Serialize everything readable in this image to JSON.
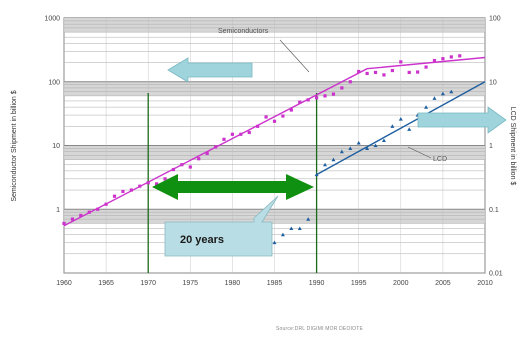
{
  "chart_data": {
    "type": "line",
    "title": "",
    "xlabel": "",
    "ylabel_left": "Semiconductor Shipment in billion $",
    "ylabel_right": "LCD Shipment in billion $",
    "x_range": [
      1960,
      2010
    ],
    "x_ticks": [
      "1960",
      "1965",
      "1970",
      "1975",
      "1980",
      "1985",
      "1990",
      "1995",
      "2000",
      "2005",
      "2010"
    ],
    "y_left_scale": "log",
    "y_left_range": [
      0.1,
      1000
    ],
    "y_left_ticks": [
      "1000",
      "100",
      "10",
      "1"
    ],
    "y_right_scale": "log",
    "y_right_range": [
      0.01,
      100
    ],
    "y_right_ticks": [
      "100",
      "10",
      "1",
      "0.1",
      "0.01"
    ],
    "grid": true,
    "series": [
      {
        "name": "Semiconductors",
        "axis": "left",
        "color": "#cc33cc",
        "trend": [
          [
            1960,
            0.55
          ],
          [
            1996,
            160
          ],
          [
            2010,
            240
          ]
        ],
        "points": [
          [
            1960,
            0.6
          ],
          [
            1961,
            0.7
          ],
          [
            1962,
            0.8
          ],
          [
            1963,
            0.9
          ],
          [
            1964,
            1.0
          ],
          [
            1965,
            1.2
          ],
          [
            1966,
            1.6
          ],
          [
            1967,
            1.9
          ],
          [
            1968,
            2.0
          ],
          [
            1969,
            2.3
          ],
          [
            1970,
            2.6
          ],
          [
            1971,
            2.5
          ],
          [
            1972,
            3.0
          ],
          [
            1973,
            4.2
          ],
          [
            1974,
            5.0
          ],
          [
            1975,
            4.6
          ],
          [
            1976,
            6.2
          ],
          [
            1977,
            7.5
          ],
          [
            1978,
            9.5
          ],
          [
            1979,
            12.5
          ],
          [
            1980,
            15
          ],
          [
            1981,
            15
          ],
          [
            1982,
            16
          ],
          [
            1983,
            20
          ],
          [
            1984,
            28
          ],
          [
            1985,
            24
          ],
          [
            1986,
            29
          ],
          [
            1987,
            36
          ],
          [
            1988,
            48
          ],
          [
            1989,
            52
          ],
          [
            1990,
            56
          ],
          [
            1991,
            60
          ],
          [
            1992,
            64
          ],
          [
            1993,
            80
          ],
          [
            1994,
            100
          ],
          [
            1995,
            145
          ],
          [
            1996,
            135
          ],
          [
            1997,
            140
          ],
          [
            1998,
            128
          ],
          [
            1999,
            150
          ],
          [
            2000,
            205
          ],
          [
            2001,
            140
          ],
          [
            2002,
            142
          ],
          [
            2003,
            170
          ],
          [
            2004,
            215
          ],
          [
            2005,
            230
          ],
          [
            2006,
            245
          ],
          [
            2007,
            255
          ]
        ]
      },
      {
        "name": "LCD",
        "axis": "right",
        "color": "#1f5fa0",
        "trend": [
          [
            1990,
            0.35
          ],
          [
            2010,
            10
          ]
        ],
        "points": [
          [
            1985,
            0.03
          ],
          [
            1986,
            0.04
          ],
          [
            1987,
            0.05
          ],
          [
            1988,
            0.05
          ],
          [
            1989,
            0.07
          ],
          [
            1990,
            0.35
          ],
          [
            1991,
            0.5
          ],
          [
            1992,
            0.6
          ],
          [
            1993,
            0.8
          ],
          [
            1994,
            0.9
          ],
          [
            1995,
            1.1
          ],
          [
            1996,
            0.9
          ],
          [
            1997,
            1.0
          ],
          [
            1998,
            1.2
          ],
          [
            1999,
            2.0
          ],
          [
            2000,
            2.6
          ],
          [
            2001,
            1.8
          ],
          [
            2002,
            3.0
          ],
          [
            2003,
            4.0
          ],
          [
            2004,
            5.5
          ],
          [
            2005,
            6.5
          ],
          [
            2006,
            7.0
          ]
        ]
      }
    ],
    "annotations": {
      "semiconductors_label": "Semiconductors",
      "lcd_label": "LCD",
      "lag_label": "20 years",
      "left_arrow_color": "#9fd4dc",
      "right_arrow_color": "#9fd4dc",
      "lag_arrow_color": "#109010",
      "vertical_line_color": "#1a6a1a",
      "vertical_lines_x": [
        1970,
        1990
      ]
    },
    "source": "Source:DRL DIGIMI MOR DEOIOTE"
  }
}
